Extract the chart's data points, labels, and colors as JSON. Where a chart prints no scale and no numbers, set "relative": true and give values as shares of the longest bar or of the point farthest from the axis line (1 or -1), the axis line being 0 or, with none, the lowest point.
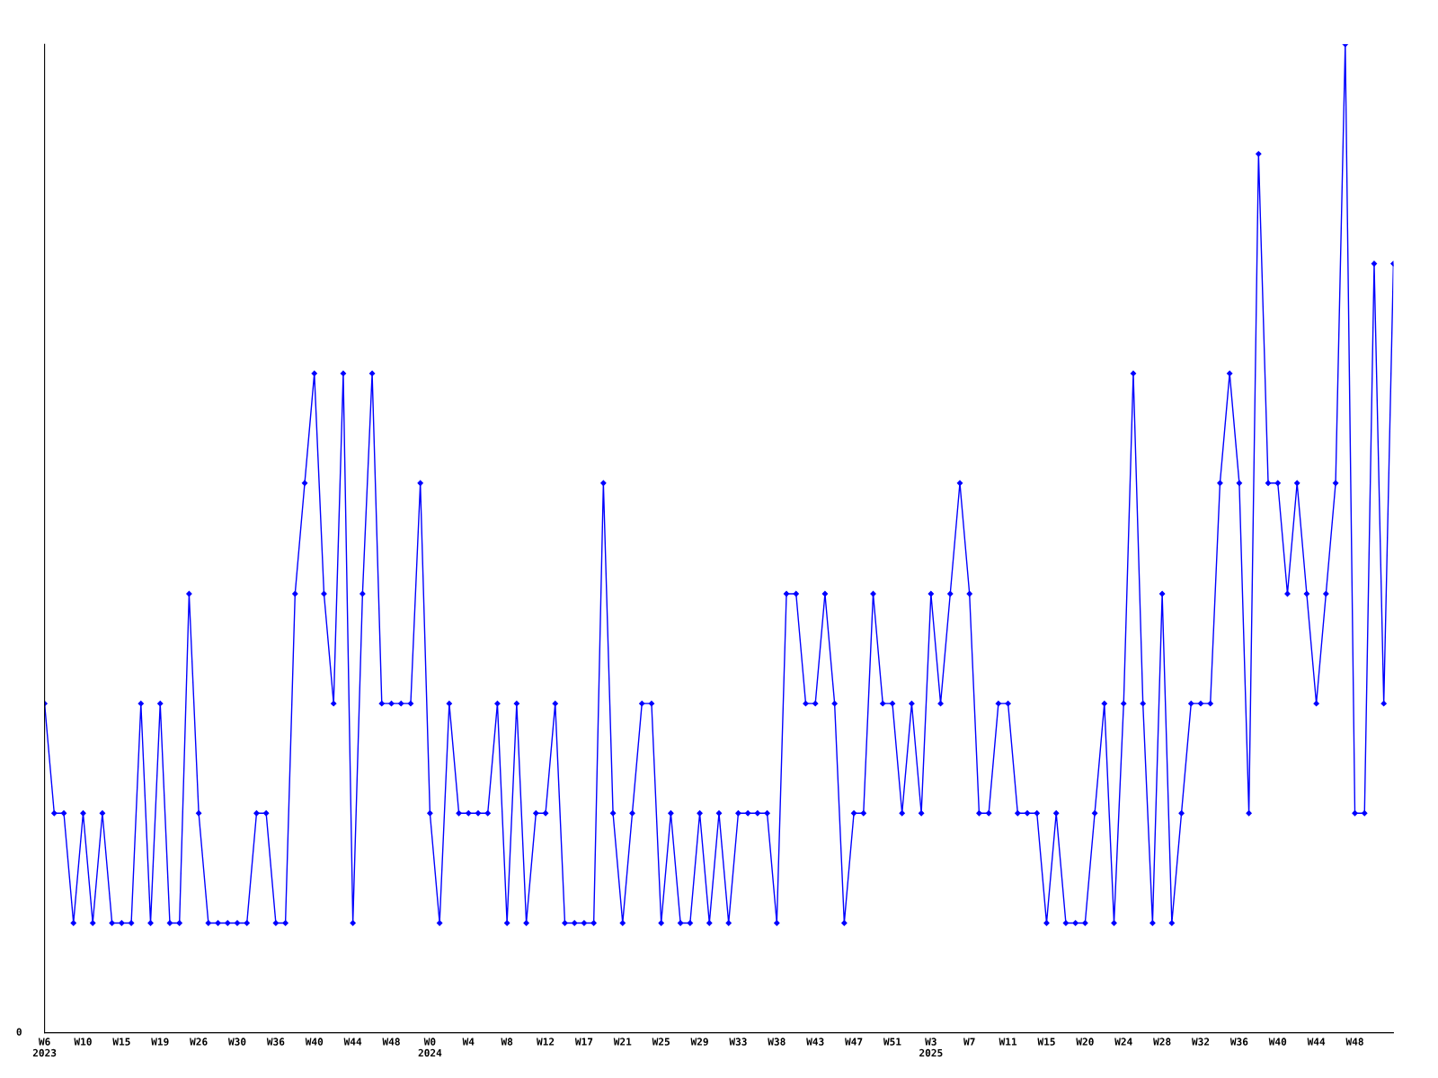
{
  "chart_data": {
    "type": "line",
    "relative": true,
    "marker": "diamond",
    "line_style": "solid",
    "grid": false,
    "legend": false,
    "annotations": [
      "0"
    ],
    "categories": [
      "W6\n2023",
      null,
      null,
      null,
      "W10",
      null,
      null,
      null,
      "W15",
      null,
      null,
      null,
      "W19",
      null,
      null,
      null,
      "W26",
      null,
      null,
      null,
      "W30",
      null,
      null,
      null,
      "W36",
      null,
      null,
      null,
      "W40",
      null,
      null,
      null,
      "W44",
      null,
      null,
      null,
      "W48",
      null,
      null,
      null,
      "W0\n2024",
      null,
      null,
      null,
      "W4",
      null,
      null,
      null,
      "W8",
      null,
      null,
      null,
      "W12",
      null,
      null,
      null,
      "W17",
      null,
      null,
      null,
      "W21",
      null,
      null,
      null,
      "W25",
      null,
      null,
      null,
      "W29",
      null,
      null,
      null,
      "W33",
      null,
      null,
      null,
      "W38",
      null,
      null,
      null,
      "W43",
      null,
      null,
      null,
      "W47",
      null,
      null,
      null,
      "W51",
      null,
      null,
      null,
      "W3\n2025",
      null,
      null,
      null,
      "W7",
      null,
      null,
      null,
      "W11",
      null,
      null,
      null,
      "W15",
      null,
      null,
      null,
      "W20",
      null,
      null,
      null,
      "W24",
      null,
      null,
      null,
      "W28",
      null,
      null,
      null,
      "W32",
      null,
      null,
      null,
      "W36",
      null,
      null,
      null,
      "W40",
      null,
      null,
      null,
      "W44",
      null,
      null,
      null,
      "W48",
      null,
      null,
      null,
      null
    ],
    "series": [
      {
        "color": "#0000ff",
        "values": [
          0.333,
          0.222,
          0.222,
          0.111,
          0.222,
          0.111,
          0.222,
          0.111,
          0.111,
          0.111,
          0.333,
          0.111,
          0.333,
          0.111,
          0.111,
          0.444,
          0.222,
          0.111,
          0.111,
          0.111,
          0.111,
          0.111,
          0.222,
          0.222,
          0.111,
          0.111,
          0.444,
          0.556,
          0.667,
          0.444,
          0.333,
          0.667,
          0.111,
          0.444,
          0.667,
          0.333,
          0.333,
          0.333,
          0.333,
          0.556,
          0.222,
          0.111,
          0.333,
          0.222,
          0.222,
          0.222,
          0.222,
          0.333,
          0.111,
          0.333,
          0.111,
          0.222,
          0.222,
          0.333,
          0.111,
          0.111,
          0.111,
          0.111,
          0.556,
          0.222,
          0.111,
          0.222,
          0.333,
          0.333,
          0.111,
          0.222,
          0.111,
          0.111,
          0.222,
          0.111,
          0.222,
          0.111,
          0.222,
          0.222,
          0.222,
          0.222,
          0.111,
          0.444,
          0.444,
          0.333,
          0.333,
          0.444,
          0.333,
          0.111,
          0.222,
          0.222,
          0.444,
          0.333,
          0.333,
          0.222,
          0.333,
          0.222,
          0.444,
          0.333,
          0.444,
          0.556,
          0.444,
          0.222,
          0.222,
          0.333,
          0.333,
          0.222,
          0.222,
          0.222,
          0.111,
          0.222,
          0.111,
          0.111,
          0.111,
          0.222,
          0.333,
          0.111,
          0.333,
          0.667,
          0.333,
          0.111,
          0.444,
          0.111,
          0.222,
          0.333,
          0.333,
          0.333,
          0.556,
          0.667,
          0.556,
          0.222,
          0.889,
          0.556,
          0.556,
          0.444,
          0.556,
          0.444,
          0.333,
          0.444,
          0.556,
          1,
          0.222,
          0.222,
          0.778,
          0.333,
          0.778
        ]
      }
    ]
  }
}
